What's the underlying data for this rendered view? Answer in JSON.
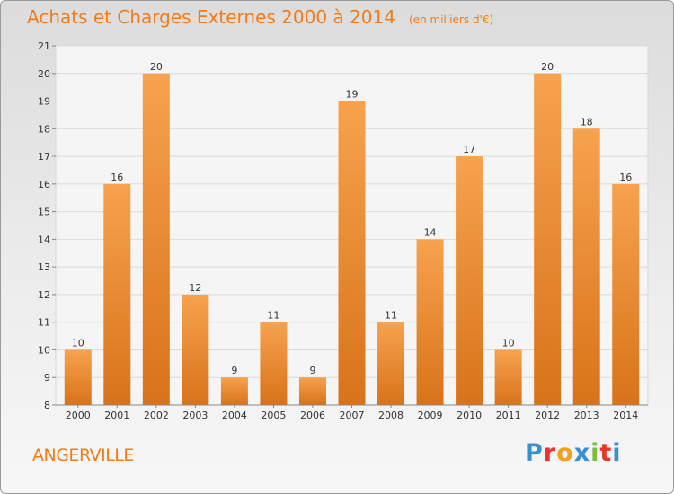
{
  "header": {
    "title": "Achats et Charges Externes 2000 à 2014",
    "unit": "(en milliers d'€)"
  },
  "footer": {
    "commune": "ANGERVILLE",
    "logo_text": "Proxiti"
  },
  "colors": {
    "bar_light": "#f7a24e",
    "bar_dark": "#d8731a",
    "accent": "#f07c1c"
  },
  "chart_data": {
    "type": "bar",
    "title": "Achats et Charges Externes 2000 à 2014",
    "subtitle": "(en milliers d'€)",
    "xlabel": "",
    "ylabel": "",
    "categories": [
      "2000",
      "2001",
      "2002",
      "2003",
      "2004",
      "2005",
      "2006",
      "2007",
      "2008",
      "2009",
      "2010",
      "2011",
      "2012",
      "2013",
      "2014"
    ],
    "values": [
      10,
      16,
      20,
      12,
      9,
      11,
      9,
      19,
      11,
      14,
      17,
      10,
      20,
      18,
      16
    ],
    "ylim": [
      8,
      21
    ],
    "yticks": [
      8,
      9,
      10,
      11,
      12,
      13,
      14,
      15,
      16,
      17,
      18,
      19,
      20,
      21
    ],
    "grid": true,
    "legend": "none"
  }
}
